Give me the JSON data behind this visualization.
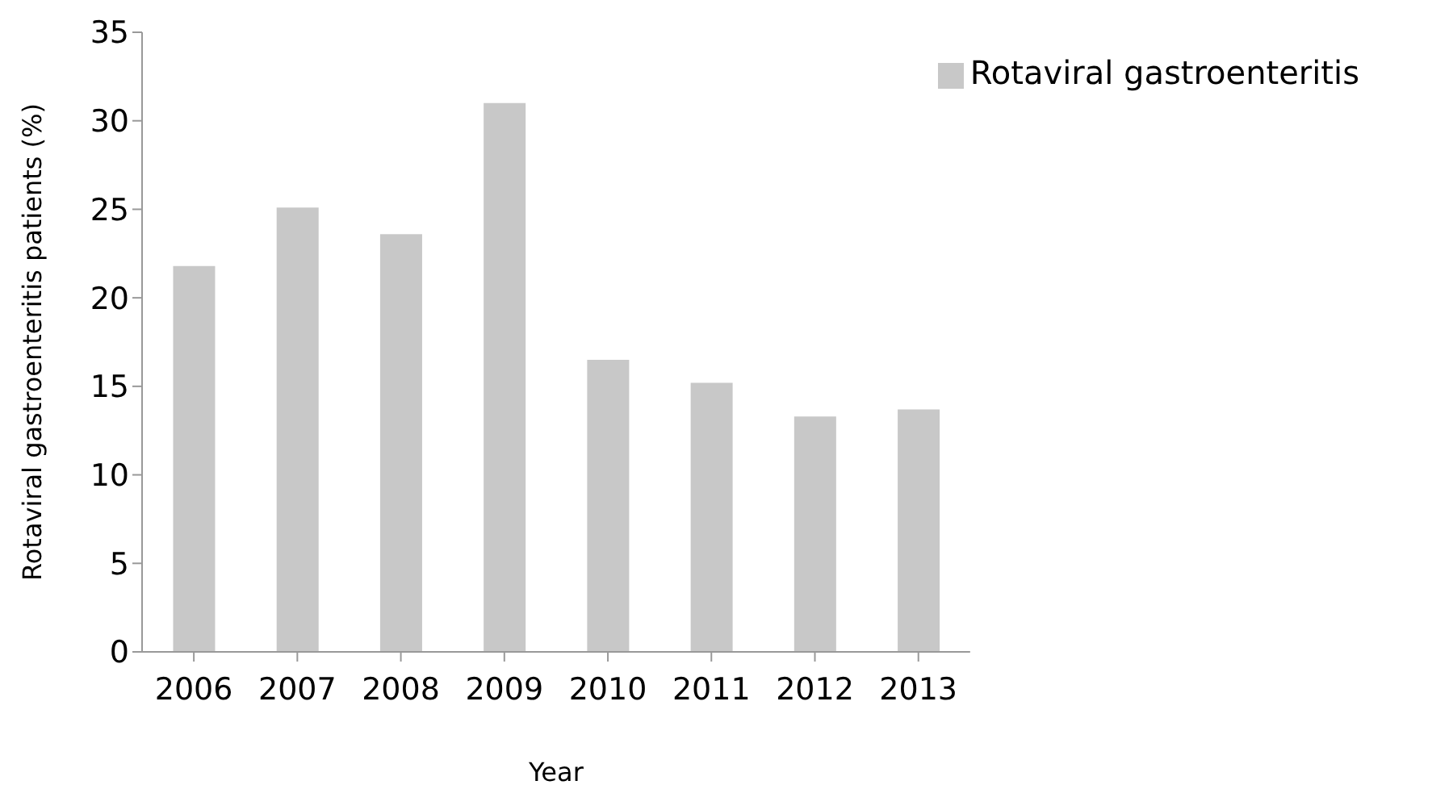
{
  "chart_data": {
    "type": "bar",
    "xlabel": "Year",
    "ylabel": "Rotaviral  gastroenteritis  patients  (%)",
    "categories": [
      "2006",
      "2007",
      "2008",
      "2009",
      "2010",
      "2011",
      "2012",
      "2013"
    ],
    "series": [
      {
        "name": "Rotaviral gastroenteritis",
        "color": "#c8c8c8",
        "values": [
          21.8,
          25.1,
          23.6,
          31.0,
          16.5,
          15.2,
          13.3,
          13.7
        ]
      }
    ],
    "ylim": [
      0,
      35
    ],
    "yticks": [
      0,
      5,
      10,
      15,
      20,
      25,
      30,
      35
    ],
    "grid": false,
    "legend": "top right"
  }
}
